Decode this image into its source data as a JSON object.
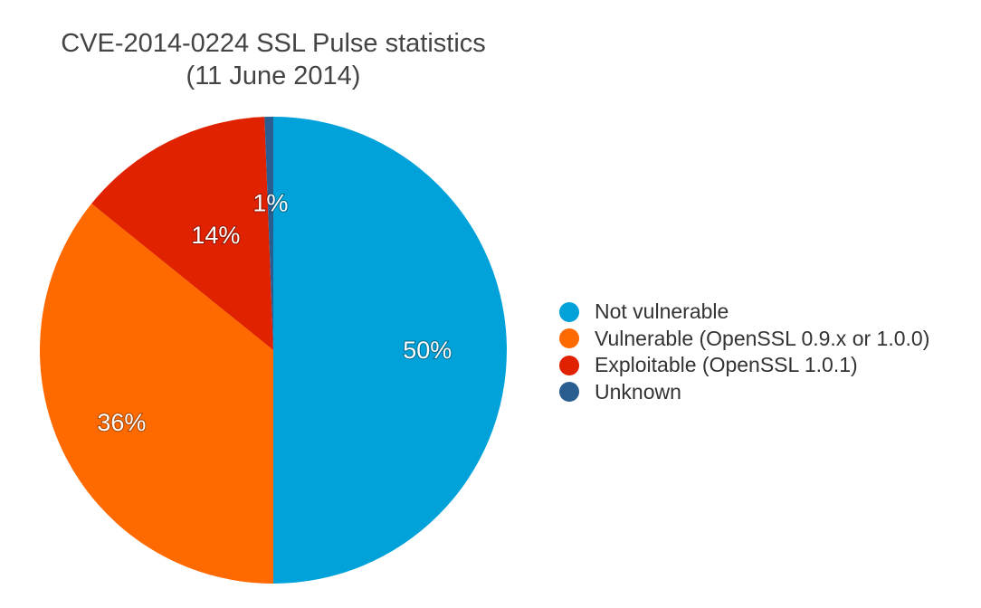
{
  "chart_data": {
    "type": "pie",
    "title_lines": [
      "CVE-2014-0224 SSL Pulse statistics",
      "(11 June 2014)"
    ],
    "slices": [
      {
        "name": "Not vulnerable",
        "value": 50,
        "label": "50%",
        "color": "#00a2d9"
      },
      {
        "name": "Vulnerable (OpenSSL 0.9.x or 1.0.0)",
        "value": 35.8,
        "label": "36%",
        "color": "#ff6a00"
      },
      {
        "name": "Exploitable (OpenSSL 1.0.1)",
        "value": 13.6,
        "label": "14%",
        "color": "#e02200"
      },
      {
        "name": "Unknown",
        "value": 0.6,
        "label": "1%",
        "color": "#2a5e91"
      }
    ],
    "legend_position": "right"
  }
}
